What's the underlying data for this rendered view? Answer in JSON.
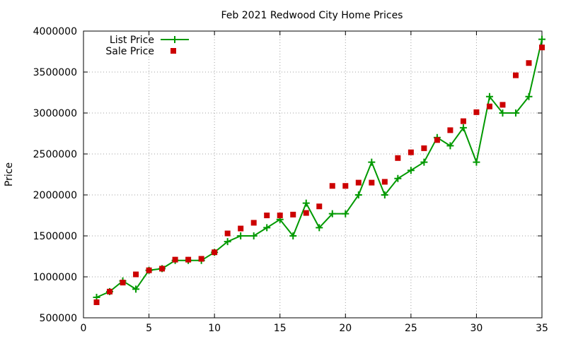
{
  "chart_data": {
    "type": "line",
    "title": "Feb 2021 Redwood City Home Prices",
    "xlabel": "",
    "ylabel": "Price",
    "xlim": [
      0,
      35
    ],
    "ylim": [
      500000,
      4000000
    ],
    "x_ticks": [
      0,
      5,
      10,
      15,
      20,
      25,
      30,
      35
    ],
    "y_ticks": [
      500000,
      1000000,
      1500000,
      2000000,
      2500000,
      3000000,
      3500000,
      4000000
    ],
    "grid": true,
    "legend_position": "top-left",
    "series": [
      {
        "name": "List Price",
        "style": "line-with-plus-markers",
        "color": "#009900",
        "x": [
          1,
          2,
          3,
          4,
          5,
          6,
          7,
          8,
          9,
          10,
          11,
          12,
          13,
          14,
          15,
          16,
          17,
          18,
          19,
          20,
          21,
          22,
          23,
          24,
          25,
          26,
          27,
          28,
          29,
          30,
          31,
          32,
          33,
          34,
          35
        ],
        "values": [
          750000,
          820000,
          950000,
          850000,
          1080000,
          1100000,
          1200000,
          1200000,
          1200000,
          1300000,
          1430000,
          1500000,
          1500000,
          1600000,
          1700000,
          1500000,
          1900000,
          1600000,
          1770000,
          1770000,
          2000000,
          2400000,
          2000000,
          2200000,
          2300000,
          2400000,
          2700000,
          2600000,
          2820000,
          2400000,
          3200000,
          3000000,
          3000000,
          3200000,
          3900000
        ]
      },
      {
        "name": "Sale Price",
        "style": "square-markers",
        "color": "#cc0000",
        "x": [
          1,
          2,
          3,
          4,
          5,
          6,
          7,
          8,
          9,
          10,
          11,
          12,
          13,
          14,
          15,
          16,
          17,
          18,
          19,
          20,
          21,
          22,
          23,
          24,
          25,
          26,
          27,
          28,
          29,
          30,
          31,
          32,
          33,
          34,
          35
        ],
        "values": [
          690000,
          820000,
          930000,
          1030000,
          1080000,
          1100000,
          1210000,
          1210000,
          1220000,
          1300000,
          1530000,
          1590000,
          1660000,
          1750000,
          1750000,
          1760000,
          1780000,
          1860000,
          2110000,
          2110000,
          2150000,
          2150000,
          2160000,
          2450000,
          2520000,
          2570000,
          2670000,
          2790000,
          2900000,
          3010000,
          3080000,
          3100000,
          3460000,
          3610000,
          3800000
        ]
      }
    ]
  }
}
